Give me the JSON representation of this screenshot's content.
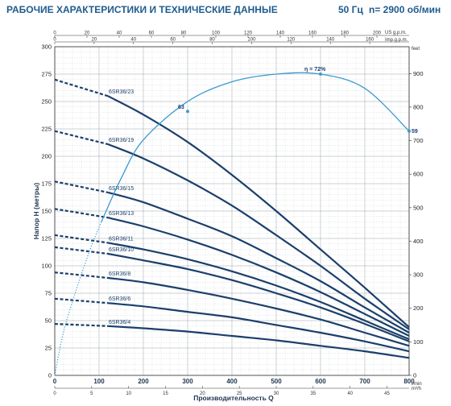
{
  "header": {
    "title": "РАБОЧИЕ ХАРАКТЕРИСТИКИ И ТЕХНИЧЕСКИЕ ДАННЫЕ",
    "freq": "50 Гц",
    "speed": "n= 2900 об/мин"
  },
  "chart_data": {
    "type": "line",
    "title": "",
    "xlabel": "Производительность Q",
    "ylabel": "Напор H (метры)",
    "x_unit": "l/min",
    "xlim": [
      0,
      800
    ],
    "ylim": [
      0,
      300
    ],
    "x_ticks": [
      0,
      100,
      200,
      300,
      400,
      500,
      600,
      700,
      800
    ],
    "y_ticks": [
      0,
      25,
      50,
      75,
      100,
      125,
      150,
      175,
      200,
      225,
      250,
      275,
      300
    ],
    "top_axis_us": {
      "unit": "US g.p.m.",
      "max": 220,
      "ticks": [
        0,
        20,
        40,
        60,
        80,
        100,
        120,
        140,
        160,
        180,
        200
      ]
    },
    "top_axis_imp": {
      "unit": "Imp.g.p.m.",
      "max": 180,
      "ticks": [
        0,
        20,
        40,
        60,
        80,
        100,
        120,
        140,
        160
      ]
    },
    "right_axis_feet": {
      "unit": "feet",
      "max": 980,
      "ticks": [
        0,
        100,
        200,
        300,
        400,
        500,
        600,
        700,
        800,
        900
      ]
    },
    "bottom_axis_m3h": {
      "unit": "m³/h",
      "max": 48,
      "ticks": [
        0,
        5,
        10,
        15,
        20,
        25,
        30,
        35,
        40,
        45
      ]
    },
    "series": [
      {
        "name": "6SR36/23",
        "dashed": [
          [
            0,
            270
          ],
          [
            120,
            255
          ]
        ],
        "values": [
          [
            120,
            255
          ],
          [
            200,
            238
          ],
          [
            300,
            213
          ],
          [
            400,
            183
          ],
          [
            500,
            150
          ],
          [
            600,
            115
          ],
          [
            700,
            80
          ],
          [
            800,
            44
          ]
        ]
      },
      {
        "name": "6SR36/19",
        "dashed": [
          [
            0,
            223
          ],
          [
            120,
            211
          ]
        ],
        "values": [
          [
            120,
            211
          ],
          [
            200,
            198
          ],
          [
            300,
            178
          ],
          [
            400,
            155
          ],
          [
            500,
            128
          ],
          [
            600,
            100
          ],
          [
            700,
            70
          ],
          [
            800,
            42
          ]
        ]
      },
      {
        "name": "6SR36/15",
        "dashed": [
          [
            0,
            177
          ],
          [
            120,
            167
          ]
        ],
        "values": [
          [
            120,
            167
          ],
          [
            200,
            158
          ],
          [
            300,
            143
          ],
          [
            400,
            127
          ],
          [
            500,
            107
          ],
          [
            600,
            86
          ],
          [
            700,
            62
          ],
          [
            800,
            39
          ]
        ]
      },
      {
        "name": "6SR36/13",
        "dashed": [
          [
            0,
            152
          ],
          [
            120,
            144
          ]
        ],
        "values": [
          [
            120,
            144
          ],
          [
            200,
            136
          ],
          [
            300,
            124
          ],
          [
            400,
            110
          ],
          [
            500,
            94
          ],
          [
            600,
            76
          ],
          [
            700,
            56
          ],
          [
            800,
            36
          ]
        ]
      },
      {
        "name": "6SR36/11",
        "dashed": [
          [
            0,
            128
          ],
          [
            120,
            121
          ]
        ],
        "values": [
          [
            120,
            121
          ],
          [
            200,
            115
          ],
          [
            300,
            106
          ],
          [
            400,
            95
          ],
          [
            500,
            82
          ],
          [
            600,
            67
          ],
          [
            700,
            50
          ],
          [
            800,
            33
          ]
        ]
      },
      {
        "name": "6SR36/10",
        "dashed": [
          [
            0,
            117
          ],
          [
            120,
            111
          ]
        ],
        "values": [
          [
            120,
            111
          ],
          [
            200,
            105
          ],
          [
            300,
            97
          ],
          [
            400,
            87
          ],
          [
            500,
            75
          ],
          [
            600,
            62
          ],
          [
            700,
            47
          ],
          [
            800,
            31
          ]
        ]
      },
      {
        "name": "6SR36/8",
        "dashed": [
          [
            0,
            94
          ],
          [
            120,
            89
          ]
        ],
        "values": [
          [
            120,
            89
          ],
          [
            200,
            85
          ],
          [
            300,
            78
          ],
          [
            400,
            70
          ],
          [
            500,
            61
          ],
          [
            600,
            51
          ],
          [
            700,
            39
          ],
          [
            800,
            27
          ]
        ]
      },
      {
        "name": "6SR36/6",
        "dashed": [
          [
            0,
            70
          ],
          [
            120,
            66
          ]
        ],
        "values": [
          [
            120,
            66
          ],
          [
            200,
            63
          ],
          [
            300,
            58
          ],
          [
            400,
            53
          ],
          [
            500,
            46
          ],
          [
            600,
            39
          ],
          [
            700,
            31
          ],
          [
            800,
            22
          ]
        ]
      },
      {
        "name": "6SR36/4",
        "dashed": [
          [
            0,
            47
          ],
          [
            120,
            45
          ]
        ],
        "values": [
          [
            120,
            45
          ],
          [
            200,
            43
          ],
          [
            300,
            40
          ],
          [
            400,
            36
          ],
          [
            500,
            32
          ],
          [
            600,
            27
          ],
          [
            700,
            22
          ],
          [
            800,
            16
          ]
        ]
      }
    ],
    "efficiency": {
      "dotted": [
        [
          0,
          0
        ],
        [
          20,
          40
        ],
        [
          50,
          80
        ],
        [
          80,
          115
        ],
        [
          105,
          140
        ]
      ],
      "solid": [
        [
          105,
          140
        ],
        [
          150,
          180
        ],
        [
          200,
          215
        ],
        [
          300,
          250
        ],
        [
          400,
          268
        ],
        [
          500,
          275
        ],
        [
          600,
          275
        ],
        [
          700,
          262
        ],
        [
          800,
          223
        ]
      ],
      "points": [
        {
          "label": "63",
          "x": 300,
          "y": 241
        },
        {
          "label": "72%",
          "x": 600,
          "y": 275
        },
        {
          "label": "59",
          "x": 800,
          "y": 223
        }
      ],
      "symbol": "η ="
    }
  }
}
